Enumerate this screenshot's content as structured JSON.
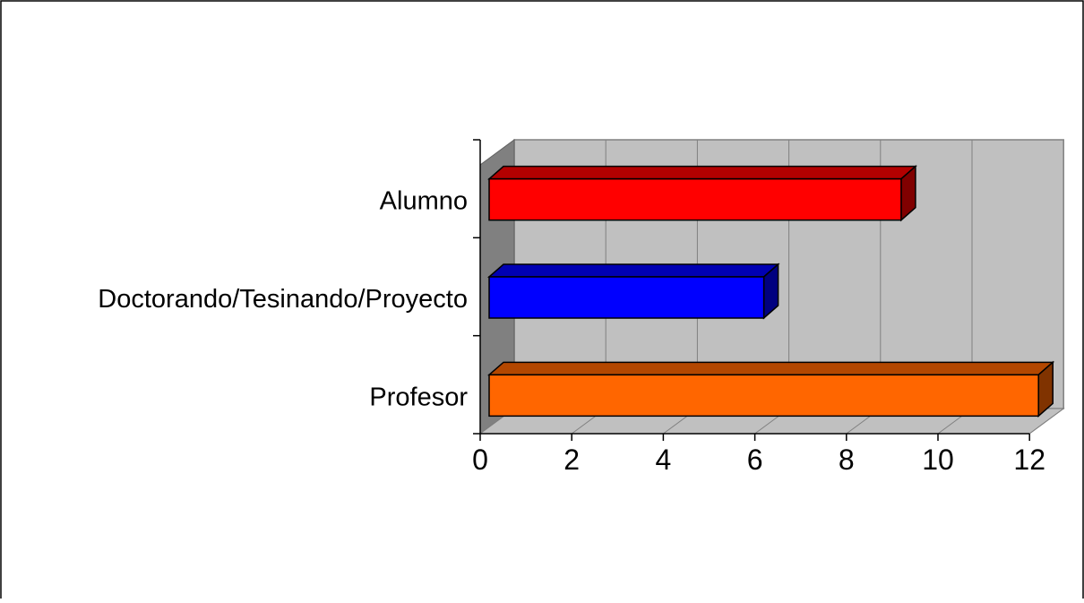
{
  "chart_data": {
    "type": "bar",
    "orientation": "horizontal",
    "style": "3d",
    "categories": [
      "Alumno",
      "Doctorando/Tesinando/Proyecto",
      "Profesor"
    ],
    "values": [
      9,
      6,
      12
    ],
    "colors": [
      "#ff0000",
      "#0000ff",
      "#ff6600"
    ],
    "side_colors": [
      "#800000",
      "#000080",
      "#803300"
    ],
    "top_colors": [
      "#b30000",
      "#0000b3",
      "#b34700"
    ],
    "xlim": [
      0,
      12
    ],
    "xticks": [
      "0",
      "2",
      "4",
      "6",
      "8",
      "10",
      "12"
    ],
    "grid": true,
    "legend": "none",
    "wall_color": "#c0c0c0",
    "side_wall_color": "#808080",
    "floor_color": "#c0c0c0"
  }
}
